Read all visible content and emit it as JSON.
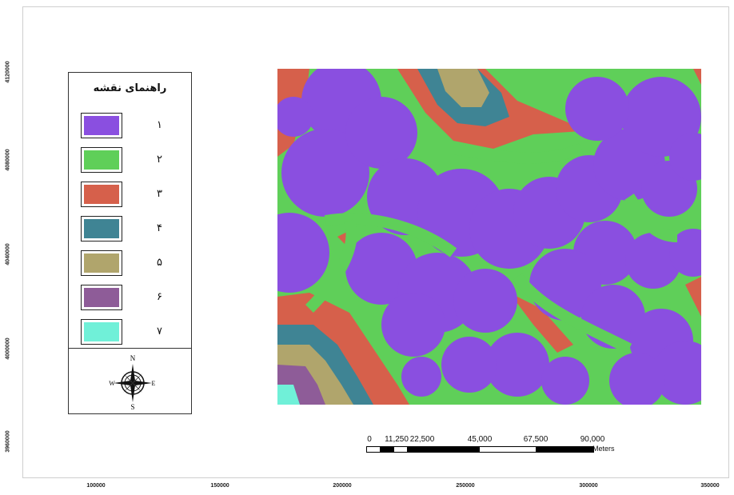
{
  "map": {
    "legend": {
      "title": "راهنمای نقشه",
      "items": [
        {
          "label": "۱",
          "color": "#8a4fe0"
        },
        {
          "label": "۲",
          "color": "#5fcf59"
        },
        {
          "label": "۳",
          "color": "#d6604b"
        },
        {
          "label": "۴",
          "color": "#3f8494"
        },
        {
          "label": "۵",
          "color": "#b0a56c"
        },
        {
          "label": "۶",
          "color": "#8e5c98"
        },
        {
          "label": "۷",
          "color": "#70f0d8"
        }
      ]
    },
    "north_arrow": {
      "n": "N",
      "e": "E",
      "s": "S",
      "w": "W",
      "icon": "compass-rose-icon"
    },
    "scale_bar": {
      "labels": [
        "0",
        "11,250",
        "22,500",
        "45,000",
        "67,500",
        "90,000"
      ],
      "units": "Meters"
    },
    "axes": {
      "x_ticks": [
        "100000",
        "150000",
        "200000",
        "250000",
        "300000",
        "350000"
      ],
      "y_ticks": [
        "4120000",
        "4080000",
        "4040000",
        "4000000",
        "3960000"
      ]
    }
  }
}
